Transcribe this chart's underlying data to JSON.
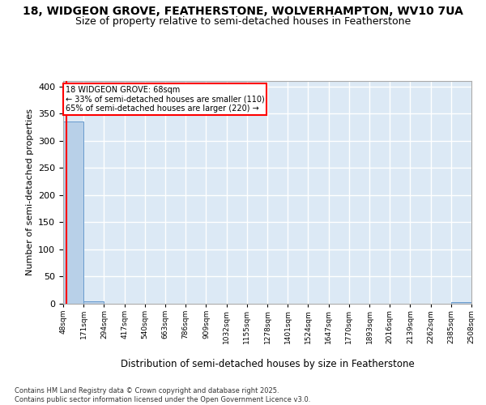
{
  "title1": "18, WIDGEON GROVE, FEATHERSTONE, WOLVERHAMPTON, WV10 7UA",
  "title2": "Size of property relative to semi-detached houses in Featherstone",
  "xlabel": "Distribution of semi-detached houses by size in Featherstone",
  "ylabel": "Number of semi-detached properties",
  "footer": "Contains HM Land Registry data © Crown copyright and database right 2025.\nContains public sector information licensed under the Open Government Licence v3.0.",
  "bin_edges": [
    48,
    171,
    294,
    417,
    540,
    663,
    786,
    909,
    1032,
    1155,
    1278,
    1401,
    1524,
    1647,
    1770,
    1893,
    2016,
    2139,
    2262,
    2385,
    2508
  ],
  "bar_heights": [
    335,
    5,
    0,
    0,
    0,
    0,
    0,
    0,
    0,
    0,
    0,
    0,
    0,
    0,
    0,
    0,
    0,
    0,
    0,
    3
  ],
  "bar_color": "#b8d0e8",
  "bar_edge_color": "#6699cc",
  "subject_value": 68,
  "subject_label": "18 WIDGEON GROVE: 68sqm",
  "pct_smaller": 33,
  "n_smaller": 110,
  "pct_larger": 65,
  "n_larger": 220,
  "annotation_box_color": "#ff0000",
  "vline_color": "#ff0000",
  "ylim": [
    0,
    410
  ],
  "yticks": [
    0,
    50,
    100,
    150,
    200,
    250,
    300,
    350,
    400
  ],
  "plot_bg_color": "#dce9f5",
  "grid_color": "#ffffff",
  "fig_bg_color": "#ffffff",
  "title_fontsize": 10,
  "subtitle_fontsize": 9
}
